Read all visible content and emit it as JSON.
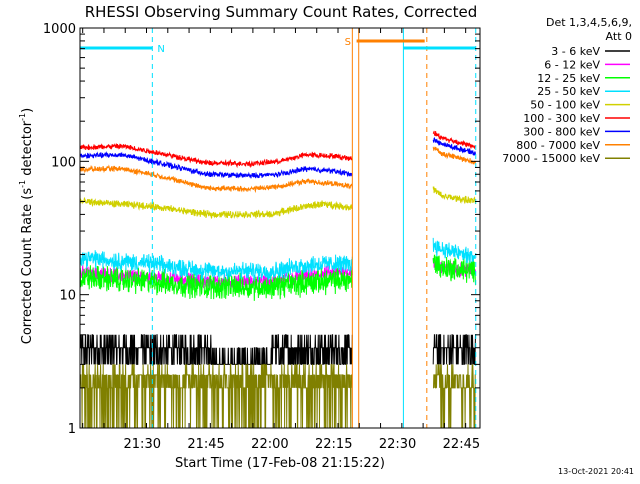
{
  "chart_data": {
    "type": "line",
    "title": "RHESSI Observing Summary Count Rates, Corrected",
    "xlabel": "Start Time (17-Feb-08 21:15:22)",
    "ylabel_main": "Corrected Count Rate (s",
    "ylabel_sup1": "-1",
    "ylabel_mid": " detector",
    "ylabel_sup2": "-1",
    "ylabel_end": ")",
    "yscale": "log",
    "ylim": [
      1,
      1000
    ],
    "xlim_minutes": [
      0,
      94
    ],
    "y_ticks": [
      "1",
      "10",
      "100",
      "1000"
    ],
    "x_ticks": [
      {
        "label": "21:30",
        "minute": 14.63
      },
      {
        "label": "21:45",
        "minute": 29.63
      },
      {
        "label": "22:00",
        "minute": 44.63
      },
      {
        "label": "22:15",
        "minute": 59.63
      },
      {
        "label": "22:30",
        "minute": 74.63
      },
      {
        "label": "22:45",
        "minute": 89.63
      }
    ],
    "legend": {
      "header1": "Det 1,3,4,5,6,9,",
      "header2": "Att 0",
      "placement": "right"
    },
    "flags": [
      {
        "label": "N",
        "color": "#00e0ff",
        "x0": 0,
        "x1": 17
      },
      {
        "label": "S",
        "color": "#ff8000",
        "x0": 65,
        "x1": 81
      },
      {
        "label": "",
        "color": "#00e0ff",
        "x0": 76,
        "x1": 93
      }
    ],
    "vlines": [
      {
        "minute": 17,
        "color": "#00e0ff",
        "dashed": true
      },
      {
        "minute": 64,
        "color": "#ff8000",
        "dashed": false
      },
      {
        "minute": 65.5,
        "color": "#ff8000",
        "dashed": false
      },
      {
        "minute": 76,
        "color": "#00e0ff",
        "dashed": false
      },
      {
        "minute": 81.5,
        "color": "#ff8000",
        "dashed": true
      },
      {
        "minute": 93,
        "color": "#00e0ff",
        "dashed": true
      }
    ],
    "segments": [
      [
        0,
        64
      ],
      [
        83,
        93
      ]
    ],
    "series": [
      {
        "name": "3 - 6 keV",
        "color": "#000000",
        "noise": 0.25,
        "stepwise": true,
        "x": [
          0,
          17,
          30,
          45,
          60,
          64,
          83,
          93
        ],
        "y": [
          4.5,
          4.2,
          3.5,
          3.5,
          3.8,
          4.0,
          4.5,
          4.5
        ]
      },
      {
        "name": "6 - 12 keV",
        "color": "#ff00ff",
        "noise": 0.04,
        "x": [
          0,
          17,
          30,
          45,
          55,
          64,
          83,
          85,
          93
        ],
        "y": [
          14.5,
          13.5,
          12.5,
          12.5,
          14,
          15,
          17,
          16,
          15
        ]
      },
      {
        "name": "12 - 25 keV",
        "color": "#00ff00",
        "noise": 0.07,
        "x": [
          0,
          17,
          30,
          45,
          55,
          64,
          83,
          85,
          93
        ],
        "y": [
          13.5,
          12.5,
          11.5,
          11.5,
          12.5,
          13,
          18,
          16,
          15
        ]
      },
      {
        "name": "25 - 50 keV",
        "color": "#00e0ff",
        "noise": 0.05,
        "x": [
          0,
          17,
          30,
          45,
          55,
          64,
          83,
          85,
          93
        ],
        "y": [
          19,
          17,
          15,
          15,
          17,
          17,
          24,
          22,
          19
        ]
      },
      {
        "name": "50 - 100 keV",
        "color": "#d0d000",
        "noise": 0.02,
        "x": [
          0,
          17,
          30,
          45,
          50,
          57,
          64,
          83,
          85,
          93
        ],
        "y": [
          50,
          46,
          40,
          40,
          44,
          48,
          45,
          62,
          55,
          50
        ]
      },
      {
        "name": "100 - 300 keV",
        "color": "#ff0000",
        "noise": 0.015,
        "x": [
          0,
          10,
          17,
          30,
          40,
          47,
          53,
          59,
          64,
          83,
          85,
          93
        ],
        "y": [
          127,
          130,
          118,
          97,
          96,
          100,
          112,
          110,
          105,
          165,
          150,
          128
        ]
      },
      {
        "name": "300 - 800 keV",
        "color": "#0000ff",
        "noise": 0.015,
        "x": [
          0,
          10,
          17,
          30,
          40,
          47,
          53,
          59,
          64,
          83,
          85,
          93
        ],
        "y": [
          110,
          112,
          100,
          80,
          78,
          80,
          88,
          85,
          80,
          145,
          135,
          115
        ]
      },
      {
        "name": "800 - 7000 keV",
        "color": "#ff8000",
        "noise": 0.015,
        "x": [
          0,
          10,
          17,
          30,
          40,
          47,
          53,
          59,
          64,
          83,
          85,
          93
        ],
        "y": [
          87,
          88,
          80,
          63,
          62,
          65,
          71,
          68,
          65,
          125,
          115,
          98
        ]
      },
      {
        "name": "7000 - 15000 keV",
        "color": "#808000",
        "noise": 0.0,
        "dropouts": true,
        "x": [
          0,
          17,
          30,
          45,
          60,
          64,
          83,
          93
        ],
        "y": [
          2.5,
          2.5,
          2.5,
          2.5,
          2.5,
          2.5,
          2.0,
          2.0
        ]
      }
    ],
    "footer": "13-Oct-2021 20:41"
  }
}
